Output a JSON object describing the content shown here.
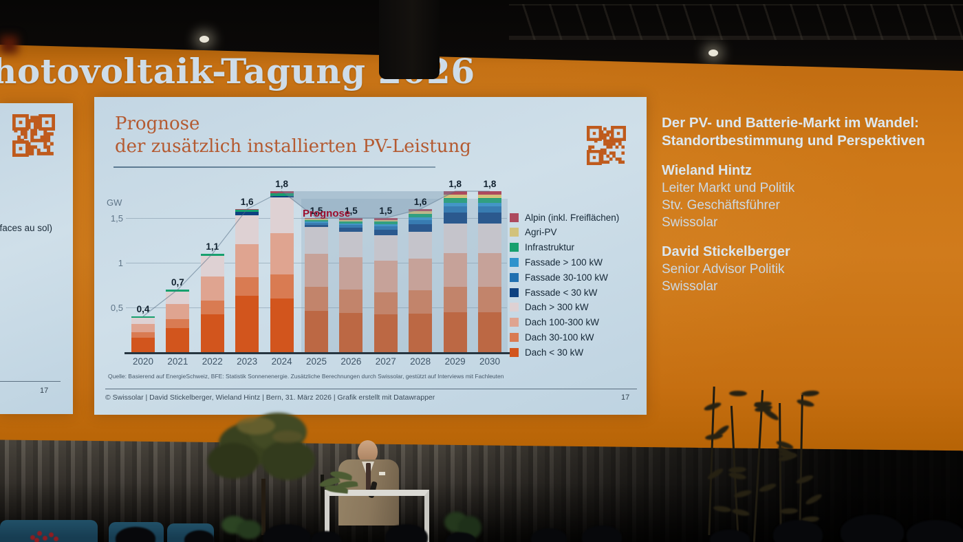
{
  "scene": {
    "banner_title": "hotovoltaik-Tagung 2026"
  },
  "left_slide": {
    "partial_text": "rfaces au sol)",
    "page_number": "17"
  },
  "slide": {
    "title_line1": "Prognose",
    "title_line2": "der zusätzlich installierten PV-Leistung",
    "source_note": "Quelle: Basierend auf EnergieSchweiz, BFE: Statistik Sonnenenergie. Zusätzliche Berechnungen durch Swissolar, gestützt auf Interviews mit Fachleuten",
    "footer": "© Swissolar | David Stickelberger, Wieland Hintz |  Bern, 31. März 2026 | Grafik erstellt mit Datawrapper",
    "page_number": "17",
    "qr_color": "#bf5a1c"
  },
  "right_panel": {
    "title_line1": "Der PV- und Batterie-Markt im Wandel:",
    "title_line2": "Standortbestimmung und Perspektiven",
    "speakers": [
      {
        "name": "Wieland Hintz",
        "roles": [
          "Leiter Markt und Politik",
          "Stv. Geschäftsführer",
          "Swissolar"
        ]
      },
      {
        "name": "David Stickelberger",
        "roles": [
          "Senior Advisor Politik",
          "Swissolar"
        ]
      }
    ]
  },
  "chart_data": {
    "type": "bar",
    "stacked": true,
    "unit_label": "GW",
    "categories": [
      "2020",
      "2021",
      "2022",
      "2023",
      "2024",
      "2025",
      "2026",
      "2027",
      "2028",
      "2029",
      "2030"
    ],
    "totals": [
      0.4,
      0.7,
      1.1,
      1.6,
      1.8,
      1.5,
      1.5,
      1.5,
      1.6,
      1.8,
      1.8
    ],
    "totals_labels": [
      "0,4",
      "0,7",
      "1,1",
      "1,6",
      "1,8",
      "1,5",
      "1,5",
      "1,5",
      "1,6",
      "1,8",
      "1,8"
    ],
    "ylim": [
      0,
      2
    ],
    "yticks": [
      {
        "v": 0.5,
        "label": "0,5"
      },
      {
        "v": 1,
        "label": "1"
      },
      {
        "v": 1.5,
        "label": "1,5"
      }
    ],
    "grid": true,
    "legend_position": "right",
    "forecast_label": "Prognose",
    "forecast_from": "2025",
    "series": [
      {
        "name": "Alpin (inkl. Freiflächen)",
        "color": "#ad4a5e",
        "values": [
          0,
          0,
          0,
          0.01,
          0.02,
          0.01,
          0.02,
          0.02,
          0.025,
          0.04,
          0.04
        ]
      },
      {
        "name": "Agri-PV",
        "color": "#d2c27c",
        "values": [
          0,
          0,
          0,
          0,
          0,
          0.01,
          0.015,
          0.02,
          0.025,
          0.04,
          0.04
        ]
      },
      {
        "name": "Infrastruktur",
        "color": "#16a06e",
        "values": [
          0.015,
          0.02,
          0.025,
          0.02,
          0.03,
          0.02,
          0.025,
          0.03,
          0.04,
          0.05,
          0.05
        ]
      },
      {
        "name": "Fassade > 100 kW",
        "color": "#2f93cc",
        "values": [
          0,
          0,
          0,
          0,
          0,
          0.015,
          0.02,
          0.02,
          0.03,
          0.04,
          0.04
        ]
      },
      {
        "name": "Fassade 30-100 kW",
        "color": "#2070b0",
        "values": [
          0,
          0,
          0,
          0,
          0,
          0.02,
          0.03,
          0.04,
          0.05,
          0.07,
          0.07
        ]
      },
      {
        "name": "Fassade < 30 kW",
        "color": "#0e4180",
        "values": [
          0,
          0,
          0,
          0.04,
          0.02,
          0.025,
          0.04,
          0.06,
          0.08,
          0.12,
          0.12
        ]
      },
      {
        "name": "Dach > 300 kW",
        "color": "#ded1d3",
        "values": [
          0.07,
          0.14,
          0.23,
          0.32,
          0.4,
          0.3,
          0.29,
          0.29,
          0.3,
          0.33,
          0.33
        ]
      },
      {
        "name": "Dach 100-300 kW",
        "color": "#dfa490",
        "values": [
          0.09,
          0.17,
          0.27,
          0.37,
          0.46,
          0.37,
          0.36,
          0.35,
          0.36,
          0.38,
          0.38
        ]
      },
      {
        "name": "Dach 30-100 kW",
        "color": "#d97b52",
        "values": [
          0.06,
          0.1,
          0.155,
          0.21,
          0.27,
          0.27,
          0.26,
          0.25,
          0.26,
          0.28,
          0.28
        ]
      },
      {
        "name": "Dach < 30 kW",
        "color": "#d2551d",
        "values": [
          0.165,
          0.27,
          0.42,
          0.63,
          0.6,
          0.46,
          0.44,
          0.42,
          0.43,
          0.45,
          0.45
        ]
      }
    ]
  }
}
